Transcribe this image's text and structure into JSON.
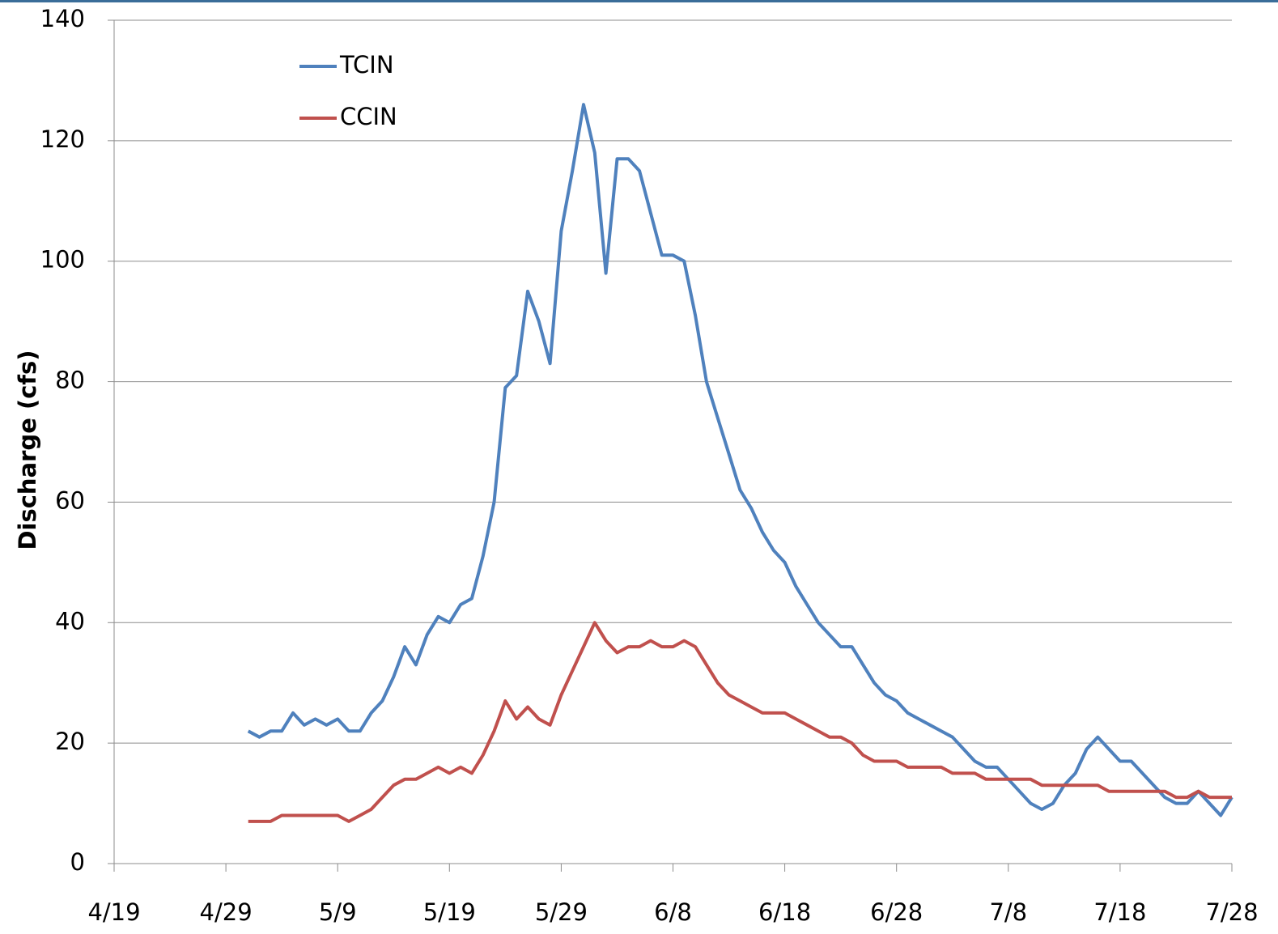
{
  "chart_data": {
    "type": "line",
    "y_label": "Discharge (cfs)",
    "x": [
      "5/1",
      "5/2",
      "5/3",
      "5/4",
      "5/5",
      "5/6",
      "5/7",
      "5/8",
      "5/9",
      "5/10",
      "5/11",
      "5/12",
      "5/13",
      "5/14",
      "5/15",
      "5/16",
      "5/17",
      "5/18",
      "5/19",
      "5/20",
      "5/21",
      "5/22",
      "5/23",
      "5/24",
      "5/25",
      "5/26",
      "5/27",
      "5/28",
      "5/29",
      "5/30",
      "5/31",
      "6/1",
      "6/2",
      "6/3",
      "6/4",
      "6/5",
      "6/6",
      "6/7",
      "6/8",
      "6/9",
      "6/10",
      "6/11",
      "6/12",
      "6/13",
      "6/14",
      "6/15",
      "6/16",
      "6/17",
      "6/18",
      "6/19",
      "6/20",
      "6/21",
      "6/22",
      "6/23",
      "6/24",
      "6/25",
      "6/26",
      "6/27",
      "6/28",
      "6/29",
      "6/30",
      "7/1",
      "7/2",
      "7/3",
      "7/4",
      "7/5",
      "7/6",
      "7/7",
      "7/8",
      "7/9",
      "7/10",
      "7/11",
      "7/12",
      "7/13",
      "7/14",
      "7/15",
      "7/16",
      "7/17",
      "7/18",
      "7/19",
      "7/20",
      "7/21",
      "7/22",
      "7/23",
      "7/24",
      "7/25",
      "7/26",
      "7/27",
      "7/28"
    ],
    "series": [
      {
        "name": "TCIN",
        "color": "#4f81bd",
        "values": [
          22,
          21,
          22,
          22,
          25,
          23,
          24,
          23,
          24,
          22,
          22,
          25,
          27,
          31,
          36,
          33,
          38,
          41,
          40,
          43,
          44,
          51,
          60,
          79,
          81,
          95,
          90,
          83,
          105,
          115,
          126,
          118,
          98,
          117,
          117,
          115,
          108,
          101,
          101,
          100,
          91,
          80,
          74,
          68,
          62,
          59,
          55,
          52,
          50,
          46,
          43,
          40,
          38,
          36,
          36,
          33,
          30,
          28,
          27,
          25,
          24,
          23,
          22,
          21,
          19,
          17,
          16,
          16,
          14,
          12,
          10,
          9,
          10,
          13,
          15,
          19,
          21,
          19,
          17,
          17,
          15,
          13,
          11,
          10,
          10,
          12,
          10,
          8,
          11
        ]
      },
      {
        "name": "CCIN",
        "color": "#c0504d",
        "values": [
          7,
          7,
          7,
          8,
          8,
          8,
          8,
          8,
          8,
          7,
          8,
          9,
          11,
          13,
          14,
          14,
          15,
          16,
          15,
          16,
          15,
          18,
          22,
          27,
          24,
          26,
          24,
          23,
          28,
          32,
          36,
          40,
          37,
          35,
          36,
          36,
          37,
          36,
          36,
          37,
          36,
          33,
          30,
          28,
          27,
          26,
          25,
          25,
          25,
          24,
          23,
          22,
          21,
          21,
          20,
          18,
          17,
          17,
          17,
          16,
          16,
          16,
          16,
          15,
          15,
          15,
          14,
          14,
          14,
          14,
          14,
          13,
          13,
          13,
          13,
          13,
          13,
          12,
          12,
          12,
          12,
          12,
          12,
          11,
          11,
          12,
          11,
          11,
          11
        ]
      }
    ],
    "xlim": [
      "4/19",
      "7/28"
    ],
    "xticks": [
      "4/19",
      "4/29",
      "5/9",
      "5/19",
      "5/29",
      "6/8",
      "6/18",
      "6/28",
      "7/8",
      "7/18",
      "7/28"
    ],
    "ylim": [
      0,
      140
    ],
    "yticks": [
      0,
      20,
      40,
      60,
      80,
      100,
      120,
      140
    ],
    "grid": true
  }
}
